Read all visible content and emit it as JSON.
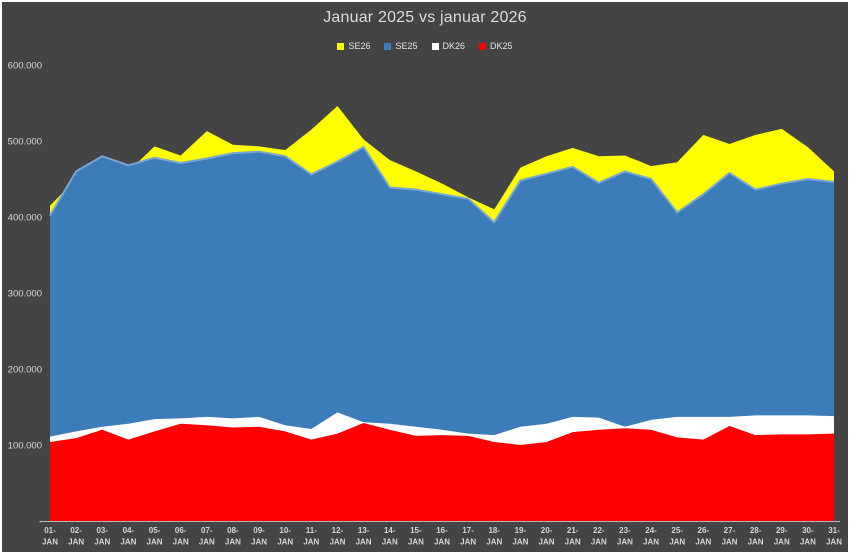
{
  "window": {
    "background": "#444444",
    "border_color": "#ffffff",
    "text_color": "#d6d6d6"
  },
  "title": "Januar 2025 vs januar 2026",
  "chart_data": {
    "type": "area",
    "mode": "overlapping-areas",
    "title": "Januar 2025 vs januar 2026",
    "xlabel": "",
    "ylabel": "",
    "grid": false,
    "legend_position": "top-center",
    "ylim": [
      0,
      620000
    ],
    "axis_line_color": "#b7b7b7",
    "categories": [
      "01-JAN",
      "02-JAN",
      "03-JAN",
      "04-JAN",
      "05-JAN",
      "06-JAN",
      "07-JAN",
      "08-JAN",
      "09-JAN",
      "10-JAN",
      "11-JAN",
      "12-JAN",
      "13-JAN",
      "14-JAN",
      "15-JAN",
      "16-JAN",
      "17-JAN",
      "18-JAN",
      "19-JAN",
      "20-JAN",
      "21-JAN",
      "22-JAN",
      "23-JAN",
      "24-JAN",
      "25-JAN",
      "26-JAN",
      "27-JAN",
      "28-JAN",
      "29-JAN",
      "30-JAN",
      "31-JAN"
    ],
    "y_axis": {
      "ticks": [
        {
          "label": "600.000",
          "value": 600000
        },
        {
          "label": "500.000",
          "value": 500000
        },
        {
          "label": "400.000",
          "value": 400000
        },
        {
          "label": "300.000",
          "value": 300000
        },
        {
          "label": "200.000",
          "value": 200000
        },
        {
          "label": "100.000",
          "value": 100000
        },
        {
          "label": "-",
          "value": 0
        }
      ]
    },
    "series": [
      {
        "name": "SE26",
        "color": "#FFFF00",
        "values": [
          415000,
          450000,
          472000,
          460000,
          493000,
          481000,
          513000,
          495000,
          493000,
          488000,
          515000,
          546000,
          502000,
          475000,
          460000,
          444000,
          426000,
          410000,
          465000,
          480000,
          491000,
          480000,
          481000,
          467000,
          472000,
          508000,
          496000,
          508000,
          516000,
          492000,
          460000
        ]
      },
      {
        "name": "SE25",
        "color": "#3C7CB8",
        "edge_color": "#7AA6D2",
        "values": [
          402000,
          460000,
          480000,
          468000,
          478000,
          471000,
          477000,
          484000,
          486000,
          480000,
          456000,
          473000,
          492000,
          439000,
          436000,
          430000,
          424000,
          393000,
          448000,
          457000,
          466000,
          445000,
          460000,
          450000,
          406000,
          430000,
          458000,
          436000,
          444000,
          450000,
          446000
        ]
      },
      {
        "name": "DK26",
        "color": "#FFFFFF",
        "values": [
          111000,
          118000,
          124000,
          128000,
          134000,
          135000,
          137000,
          135000,
          137000,
          126000,
          121000,
          143000,
          130000,
          128000,
          124000,
          120000,
          115000,
          113000,
          124000,
          128000,
          137000,
          136000,
          124000,
          133000,
          137000,
          137000,
          137000,
          139000,
          139000,
          139000,
          138000
        ]
      },
      {
        "name": "DK25",
        "color": "#FE0000",
        "values": [
          104000,
          109000,
          120000,
          107000,
          118000,
          128000,
          126000,
          123000,
          124000,
          118000,
          107000,
          115000,
          129000,
          120000,
          112000,
          113000,
          112000,
          104000,
          100000,
          104000,
          117000,
          120000,
          122000,
          120000,
          110000,
          107000,
          125000,
          113000,
          114000,
          114000,
          115000
        ]
      }
    ]
  }
}
